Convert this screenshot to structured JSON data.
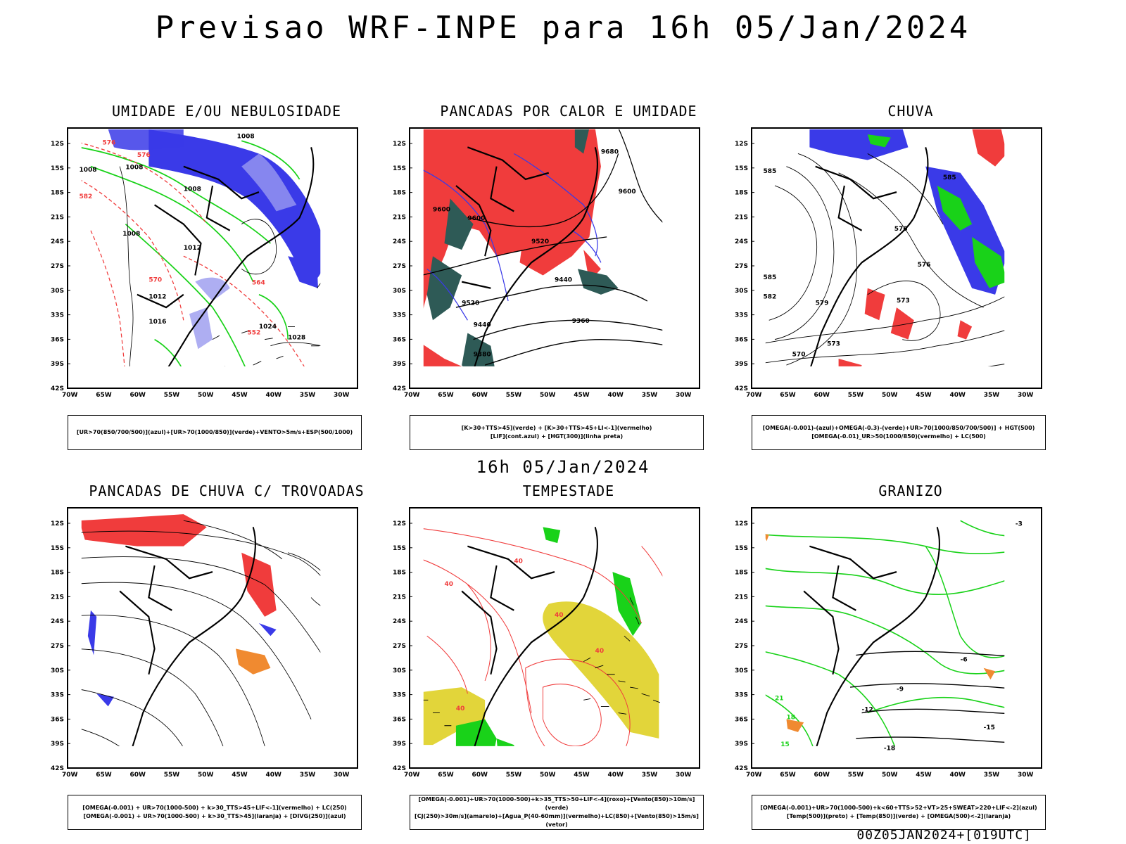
{
  "page_title": "Previsao WRF-INPE  para 16h 05/Jan/2024",
  "middle_title": "16h 05/Jan/2024",
  "footer": "00Z05JAN2024+[019UTC]",
  "axes": {
    "lat_ticks": [
      "12S",
      "15S",
      "18S",
      "21S",
      "24S",
      "27S",
      "30S",
      "33S",
      "36S",
      "39S",
      "42S"
    ],
    "lon_ticks": [
      "70W",
      "65W",
      "60W",
      "55W",
      "50W",
      "45W",
      "40W",
      "35W",
      "30W"
    ]
  },
  "colors": {
    "blue": "#3a3ae8",
    "green": "#19d219",
    "red": "#f03c3c",
    "yellow": "#e2d53a",
    "teal": "#2e5a56",
    "orange": "#f08a30",
    "lightblue": "#9a9af0"
  },
  "panels": [
    {
      "title": "UMIDADE E/OU NEBULOSIDADE",
      "caption_lines": [
        "[UR>70(850/700/500)](azul)+[UR>70(1000/850)](verde)+VENTO>5m/s+ESP(500/1000)"
      ],
      "contour_labels": [
        "1008",
        "1008",
        "1008",
        "1008",
        "1008",
        "1012",
        "1012",
        "1016",
        "1024",
        "1028",
        "576",
        "576",
        "570",
        "564",
        "552",
        "582"
      ]
    },
    {
      "title": "PANCADAS POR CALOR E UMIDADE",
      "caption_lines": [
        "[K>30+TTS>45](verde) + [K>30+TTS>45+LI<-1](vermelho)",
        "[LIF](cont.azul) + [HGT(300)](linha preta)"
      ],
      "contour_labels": [
        "9680",
        "9600",
        "9600",
        "9600",
        "9520",
        "9520",
        "9440",
        "9440",
        "9360",
        "9380"
      ]
    },
    {
      "title": "CHUVA",
      "caption_lines": [
        "[OMEGA(-0.001)-(azul)+OMEGA(-0.3)-(verde)+UR>70(1000/850/700/500)] + HGT(500)",
        "[OMEGA(-0.01)_UR>50(1000/850)(vermelho) + LC(500)"
      ],
      "contour_labels": [
        "585",
        "585",
        "582",
        "579",
        "576",
        "573",
        "573",
        "570",
        "576",
        "585"
      ]
    },
    {
      "title": "PANCADAS DE CHUVA C/ TROVOADAS",
      "caption_lines": [
        "[OMEGA(-0.001) + UR>70(1000-500) + k>30_TTS>45+LIF<-1](vermelho) + LC(250)",
        "[OMEGA(-0.001) + UR>70(1000-500) + k>30_TTS>45](laranja) + [DIVG(250)](azul)"
      ],
      "contour_labels": []
    },
    {
      "title": "TEMPESTADE",
      "caption_lines": [
        "[OMEGA(-0.001)+UR>70(1000-500)+k>35_TTS>50+LIF<-4](roxo)+[Vento(850)>10m/s](verde)",
        "[CJ(250)>30m/s](amarelo)+[Agua_P(40-60mm)](vermelho)+LC(850)+[Vento(850)>15m/s](vetor)"
      ],
      "contour_labels": [
        "40",
        "40",
        "40",
        "40",
        "40"
      ]
    },
    {
      "title": "GRANIZO",
      "caption_lines": [
        "[OMEGA(-0.001)+UR>70(1000-500)+k<60+TTS>52+VT>25+SWEAT>220+LIF<-2](azul)",
        "[Temp(500)](preto) + [Temp(850)](verde) + [OMEGA(500)<-2](laranja)"
      ],
      "contour_labels": [
        "-3",
        "-6",
        "-9",
        "-12",
        "-15",
        "-18",
        "21",
        "18",
        "15"
      ]
    }
  ]
}
